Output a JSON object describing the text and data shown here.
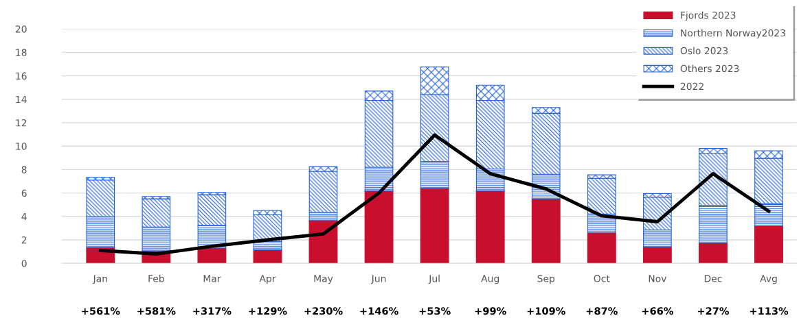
{
  "chart_data": {
    "type": "bar",
    "stacked": true,
    "categories": [
      "Jan",
      "Feb",
      "Mar",
      "Apr",
      "May",
      "Jun",
      "Jul",
      "Aug",
      "Sep",
      "Oct",
      "Nov",
      "Dec",
      "Avg"
    ],
    "series": [
      {
        "name": "Fjords 2023",
        "color": "#c8102e",
        "values": [
          1.35,
          1.05,
          1.3,
          1.15,
          3.65,
          6.2,
          6.4,
          6.2,
          5.5,
          2.6,
          1.4,
          1.75,
          3.2
        ]
      },
      {
        "name": "Northern Norway2023",
        "color": "#2563d6",
        "values": [
          2.65,
          2.05,
          1.95,
          0.7,
          0.7,
          2.0,
          2.3,
          1.85,
          2.1,
          1.6,
          1.45,
          3.2,
          1.9
        ]
      },
      {
        "name": "Oslo 2023",
        "color": "#2563d6",
        "values": [
          3.1,
          2.4,
          2.6,
          2.3,
          3.5,
          5.7,
          5.7,
          5.85,
          5.2,
          3.05,
          2.8,
          4.45,
          3.85
        ]
      },
      {
        "name": "Others 2023",
        "color": "#2563d6",
        "values": [
          0.25,
          0.2,
          0.2,
          0.35,
          0.4,
          0.8,
          2.35,
          1.3,
          0.5,
          0.3,
          0.3,
          0.4,
          0.65
        ]
      },
      {
        "name": "2022",
        "type": "line",
        "color": "#000000",
        "values": [
          1.1,
          0.8,
          1.45,
          2.0,
          2.5,
          6.0,
          10.95,
          7.65,
          6.35,
          4.05,
          3.55,
          7.65,
          4.45
        ]
      }
    ],
    "ylim": [
      0,
      20
    ],
    "yticks": [
      0,
      2,
      4,
      6,
      8,
      10,
      12,
      14,
      16,
      18,
      20
    ],
    "grid": "y",
    "legend": "top right",
    "annotations": [
      "+561%",
      "+581%",
      "+317%",
      "+129%",
      "+230%",
      "+146%",
      "+53%",
      "+99%",
      "+109%",
      "+87%",
      "+66%",
      "+27%",
      "+113%"
    ]
  }
}
